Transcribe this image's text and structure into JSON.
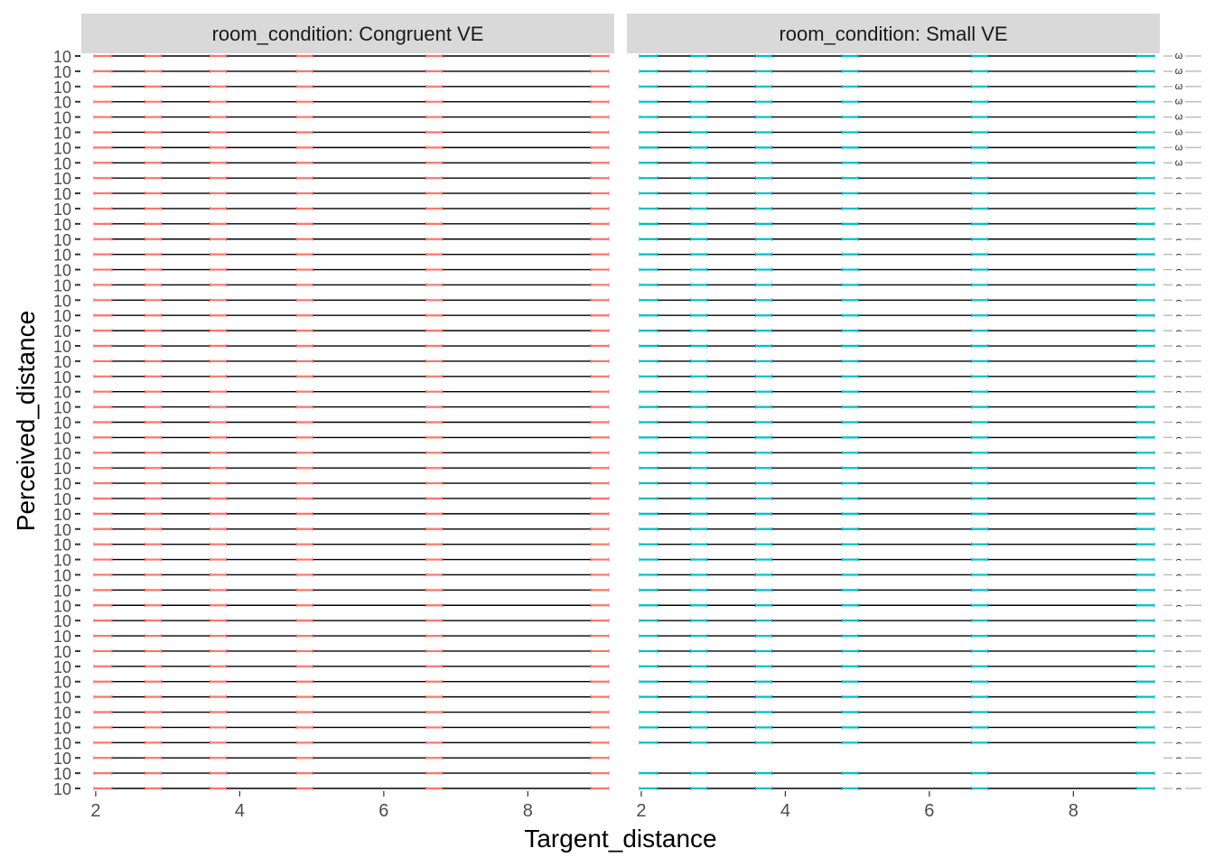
{
  "chart_data": {
    "type": "line",
    "xlabel": "Targent_distance",
    "ylabel": "Perceived_distance",
    "facet_variable": "room_condition",
    "panels": [
      {
        "strip_label": "room_condition: Congruent VE",
        "color": "#F8766D",
        "x_ticks": [
          "2",
          "4",
          "6",
          "8"
        ],
        "target_distances": [
          2.1,
          2.8,
          3.7,
          4.9,
          6.7,
          9.0
        ],
        "xlim": [
          1.8,
          9.2
        ]
      },
      {
        "strip_label": "room_condition: Small VE",
        "color": "#00BFC4",
        "x_ticks": [
          "2",
          "4",
          "6",
          "8"
        ],
        "target_distances": [
          2.1,
          2.8,
          3.7,
          4.9,
          6.7,
          9.0
        ],
        "xlim": [
          1.8,
          9.2
        ]
      }
    ],
    "y_tick_label": "10",
    "rows": 49,
    "legend_glyph_label": "ω",
    "line_color": "#000000",
    "grid": false
  }
}
